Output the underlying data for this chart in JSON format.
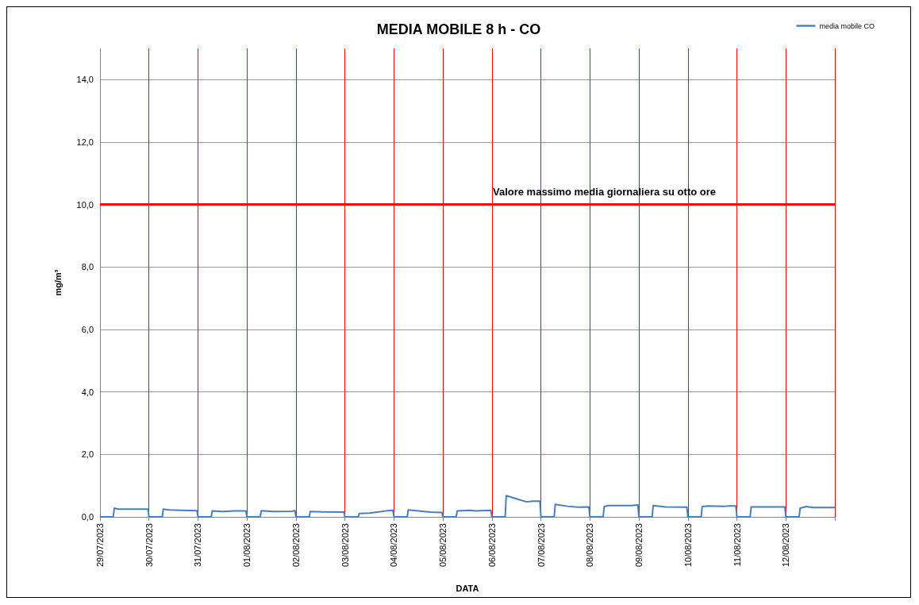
{
  "chart_data": {
    "type": "line",
    "title": "MEDIA MOBILE 8 h - CO",
    "xlabel": "DATA",
    "ylabel": "mg/m³",
    "x": [
      "2023-07-29T00:00",
      "2023-07-29T06:30",
      "2023-07-29T07:00",
      "2023-07-29T09:00",
      "2023-07-29T23:30",
      "2023-07-30T00:00",
      "2023-07-30T06:30",
      "2023-07-30T07:00",
      "2023-07-30T10:00",
      "2023-07-30T16:00",
      "2023-07-30T23:30",
      "2023-07-31T00:00",
      "2023-07-31T06:30",
      "2023-07-31T07:00",
      "2023-07-31T12:00",
      "2023-07-31T18:00",
      "2023-07-31T23:30",
      "2023-08-01T00:00",
      "2023-08-01T06:30",
      "2023-08-01T07:00",
      "2023-08-01T13:00",
      "2023-08-01T22:00",
      "2023-08-01T23:30",
      "2023-08-02T00:00",
      "2023-08-02T06:30",
      "2023-08-02T07:00",
      "2023-08-02T13:00",
      "2023-08-02T23:30",
      "2023-08-03T00:00",
      "2023-08-03T06:30",
      "2023-08-03T07:00",
      "2023-08-03T12:00",
      "2023-08-03T18:00",
      "2023-08-03T21:00",
      "2023-08-03T23:30",
      "2023-08-04T00:00",
      "2023-08-04T06:30",
      "2023-08-04T07:00",
      "2023-08-04T12:00",
      "2023-08-04T18:00",
      "2023-08-04T23:30",
      "2023-08-05T00:00",
      "2023-08-05T06:30",
      "2023-08-05T07:00",
      "2023-08-05T13:00",
      "2023-08-05T16:00",
      "2023-08-05T23:30",
      "2023-08-06T00:00",
      "2023-08-06T06:30",
      "2023-08-06T07:00",
      "2023-08-06T12:00",
      "2023-08-06T17:00",
      "2023-08-06T20:00",
      "2023-08-06T23:30",
      "2023-08-07T00:00",
      "2023-08-07T06:30",
      "2023-08-07T07:00",
      "2023-08-07T13:00",
      "2023-08-07T18:00",
      "2023-08-07T23:30",
      "2023-08-08T00:00",
      "2023-08-08T06:30",
      "2023-08-08T07:00",
      "2023-08-08T09:00",
      "2023-08-08T20:00",
      "2023-08-08T23:30",
      "2023-08-09T00:00",
      "2023-08-09T06:30",
      "2023-08-09T07:00",
      "2023-08-09T13:00",
      "2023-08-09T23:30",
      "2023-08-10T00:00",
      "2023-08-10T06:30",
      "2023-08-10T07:00",
      "2023-08-10T10:00",
      "2023-08-10T18:00",
      "2023-08-10T20:00",
      "2023-08-10T23:30",
      "2023-08-11T00:00",
      "2023-08-11T06:30",
      "2023-08-11T07:00",
      "2023-08-11T23:30",
      "2023-08-12T00:00",
      "2023-08-12T06:30",
      "2023-08-12T07:00",
      "2023-08-12T10:00",
      "2023-08-12T13:00",
      "2023-08-12T23:59"
    ],
    "series": [
      {
        "name": "media mobile CO",
        "color": "#4a7ebb",
        "values": [
          0,
          0,
          0.28,
          0.25,
          0.25,
          0,
          0,
          0.25,
          0.22,
          0.21,
          0.2,
          0,
          0,
          0.19,
          0.17,
          0.19,
          0.19,
          0,
          0,
          0.2,
          0.17,
          0.18,
          0.2,
          0,
          0,
          0.17,
          0.16,
          0.15,
          0,
          0,
          0.11,
          0.12,
          0.17,
          0.2,
          0.21,
          0,
          0,
          0.22,
          0.19,
          0.15,
          0.14,
          0,
          0,
          0.19,
          0.21,
          0.19,
          0.21,
          0,
          0,
          0.68,
          0.58,
          0.48,
          0.5,
          0.5,
          0,
          0,
          0.4,
          0.34,
          0.31,
          0.32,
          0,
          0,
          0.33,
          0.36,
          0.36,
          0.38,
          0,
          0,
          0.36,
          0.32,
          0.31,
          0,
          0,
          0.33,
          0.35,
          0.34,
          0.35,
          0.35,
          0,
          0,
          0.32,
          0.32,
          0,
          0,
          0.28,
          0.33,
          0.3,
          0.3
        ]
      }
    ],
    "xlim": [
      "2023-07-29",
      "2023-08-13"
    ],
    "xticks": [
      {
        "value": "2023-07-29",
        "label": "29/07/2023"
      },
      {
        "value": "2023-07-30",
        "label": "30/07/2023"
      },
      {
        "value": "2023-07-31",
        "label": "31/07/2023"
      },
      {
        "value": "2023-08-01",
        "label": "01/08/2023"
      },
      {
        "value": "2023-08-02",
        "label": "02/08/2023"
      },
      {
        "value": "2023-08-03",
        "label": "03/08/2023"
      },
      {
        "value": "2023-08-04",
        "label": "04/08/2023"
      },
      {
        "value": "2023-08-05",
        "label": "05/08/2023"
      },
      {
        "value": "2023-08-06",
        "label": "06/08/2023"
      },
      {
        "value": "2023-08-07",
        "label": "07/08/2023"
      },
      {
        "value": "2023-08-08",
        "label": "08/08/2023"
      },
      {
        "value": "2023-08-09",
        "label": "09/08/2023"
      },
      {
        "value": "2023-08-10",
        "label": "10/08/2023"
      },
      {
        "value": "2023-08-11",
        "label": "11/08/2023"
      },
      {
        "value": "2023-08-12",
        "label": "12/08/2023"
      },
      {
        "value": "2023-08-13",
        "label": null
      }
    ],
    "ylim": [
      0,
      15
    ],
    "yticks": [
      {
        "value": 0,
        "label": "0,0"
      },
      {
        "value": 2,
        "label": "2,0"
      },
      {
        "value": 4,
        "label": "4,0"
      },
      {
        "value": 6,
        "label": "6,0"
      },
      {
        "value": 8,
        "label": "8,0"
      },
      {
        "value": 10,
        "label": "10,0"
      },
      {
        "value": 12,
        "label": "12,0"
      },
      {
        "value": 14,
        "label": "14,0"
      }
    ],
    "ref_lines": [
      {
        "axis": "y",
        "value": 10,
        "label": "Valore massimo media giornaliera su otto ore",
        "color": "#ff0000"
      }
    ],
    "grid": true,
    "legend": "top right",
    "marker": "none",
    "line_style": "solid"
  }
}
